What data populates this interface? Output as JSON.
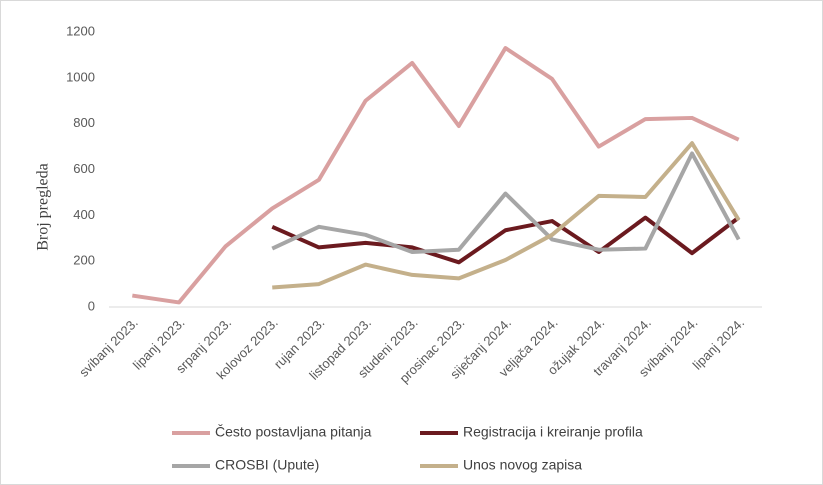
{
  "chart_data": {
    "type": "line",
    "y_label": "Broj pregleda",
    "categories": [
      "svibanj 2023.",
      "lipanj 2023.",
      "srpanj 2023.",
      "kolovoz 2023.",
      "rujan 2023.",
      "listopad 2023.",
      "studeni 2023.",
      "prosinac 2023.",
      "siječanj 2024.",
      "veljača 2024.",
      "ožujak 2024.",
      "travanj 2024.",
      "svibanj 2024.",
      "lipanj 2024."
    ],
    "series": [
      {
        "name": "Često postavljana pitanja",
        "color": "#d9a0a0",
        "values": [
          50,
          20,
          265,
          430,
          555,
          900,
          1065,
          790,
          1130,
          995,
          700,
          820,
          825,
          730
        ]
      },
      {
        "name": "Registracija i kreiranje profila",
        "color": "#6b1a1f",
        "values": [
          null,
          null,
          null,
          350,
          260,
          280,
          260,
          195,
          335,
          375,
          240,
          390,
          235,
          390
        ]
      },
      {
        "name": "CROSBI (Upute)",
        "color": "#a6a6a6",
        "values": [
          null,
          null,
          null,
          255,
          350,
          315,
          240,
          250,
          495,
          295,
          250,
          255,
          670,
          295
        ]
      },
      {
        "name": "Unos novog zapisa",
        "color": "#c4b08b",
        "values": [
          null,
          null,
          null,
          85,
          100,
          185,
          140,
          125,
          205,
          315,
          485,
          480,
          715,
          380
        ]
      }
    ],
    "ylim": [
      0,
      1200
    ],
    "yticks": [
      0,
      200,
      400,
      600,
      800,
      1000,
      1200
    ],
    "grid": false,
    "legend": "bottom"
  }
}
